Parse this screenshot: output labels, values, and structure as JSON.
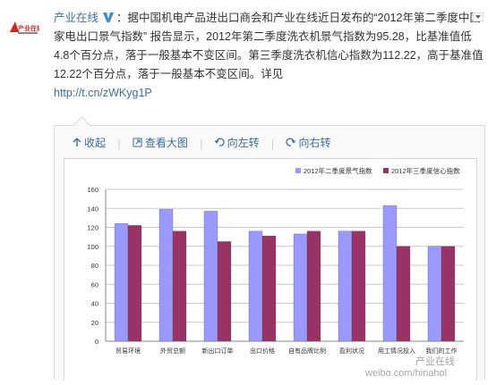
{
  "post": {
    "avatar_text": "产业在线",
    "author": "产业在线",
    "verified_icon": "verified-v-icon",
    "text": "：据中国机电产品进出口商会和产业在线近日发布的“2012年第二季度中国家电出口景气指数” 报告显示，2012年第二季度洗衣机景气指数为95.28，比基准值低4.8个百分点，落于一般基本不变区间。第三季度洗衣机信心指数为112.22，高于基准值12.22个百分点，落于一般基本不变区间。详见",
    "link": "http://t.cn/zWKyg1P"
  },
  "toolbar": {
    "collapse_label": "收起",
    "view_large_label": "查看大图",
    "rotate_left_label": "向左转",
    "rotate_right_label": "向右转"
  },
  "watermark": {
    "line1": "产业在线",
    "line2": "weibo.com/hinahol"
  },
  "chart_data": {
    "type": "bar",
    "categories": [
      "贸易环境",
      "外贸总额",
      "新出口订单",
      "出口价格",
      "自有品牌比例",
      "盈利状况",
      "用工情况投入",
      "我们的工作"
    ],
    "series": [
      {
        "name": "2012年二季度景气指数",
        "color": "#9999ff",
        "values": [
          124,
          139,
          137,
          116,
          113,
          116,
          143,
          100
        ]
      },
      {
        "name": "2012年三季度信心指数",
        "color": "#993366",
        "values": [
          122,
          116,
          105,
          111,
          116,
          116,
          100,
          100
        ]
      }
    ],
    "yticks": [
      0,
      20,
      40,
      60,
      80,
      100,
      120,
      140,
      160
    ],
    "ylim": [
      0,
      160
    ],
    "grid": true,
    "legend_position": "top-right"
  }
}
